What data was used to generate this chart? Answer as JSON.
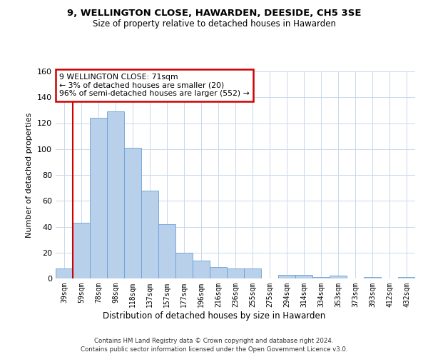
{
  "title": "9, WELLINGTON CLOSE, HAWARDEN, DEESIDE, CH5 3SE",
  "subtitle": "Size of property relative to detached houses in Hawarden",
  "xlabel": "Distribution of detached houses by size in Hawarden",
  "ylabel": "Number of detached properties",
  "bar_labels": [
    "39sqm",
    "59sqm",
    "78sqm",
    "98sqm",
    "118sqm",
    "137sqm",
    "157sqm",
    "177sqm",
    "196sqm",
    "216sqm",
    "236sqm",
    "255sqm",
    "275sqm",
    "294sqm",
    "314sqm",
    "334sqm",
    "353sqm",
    "373sqm",
    "393sqm",
    "412sqm",
    "432sqm"
  ],
  "bar_heights": [
    8,
    43,
    124,
    129,
    101,
    68,
    42,
    20,
    14,
    9,
    8,
    8,
    0,
    3,
    3,
    1,
    2,
    0,
    1,
    0,
    1
  ],
  "bar_color": "#b8d0ea",
  "bar_edge_color": "#6a9fd8",
  "vline_color": "#cc0000",
  "vline_x_index": 1,
  "annotation_text": "9 WELLINGTON CLOSE: 71sqm\n← 3% of detached houses are smaller (20)\n96% of semi-detached houses are larger (552) →",
  "annotation_box_color": "#ffffff",
  "annotation_box_edge": "#cc0000",
  "ylim": [
    0,
    160
  ],
  "yticks": [
    0,
    20,
    40,
    60,
    80,
    100,
    120,
    140,
    160
  ],
  "footer1": "Contains HM Land Registry data © Crown copyright and database right 2024.",
  "footer2": "Contains public sector information licensed under the Open Government Licence v3.0.",
  "bg_color": "#ffffff",
  "grid_color": "#c8d8ec"
}
